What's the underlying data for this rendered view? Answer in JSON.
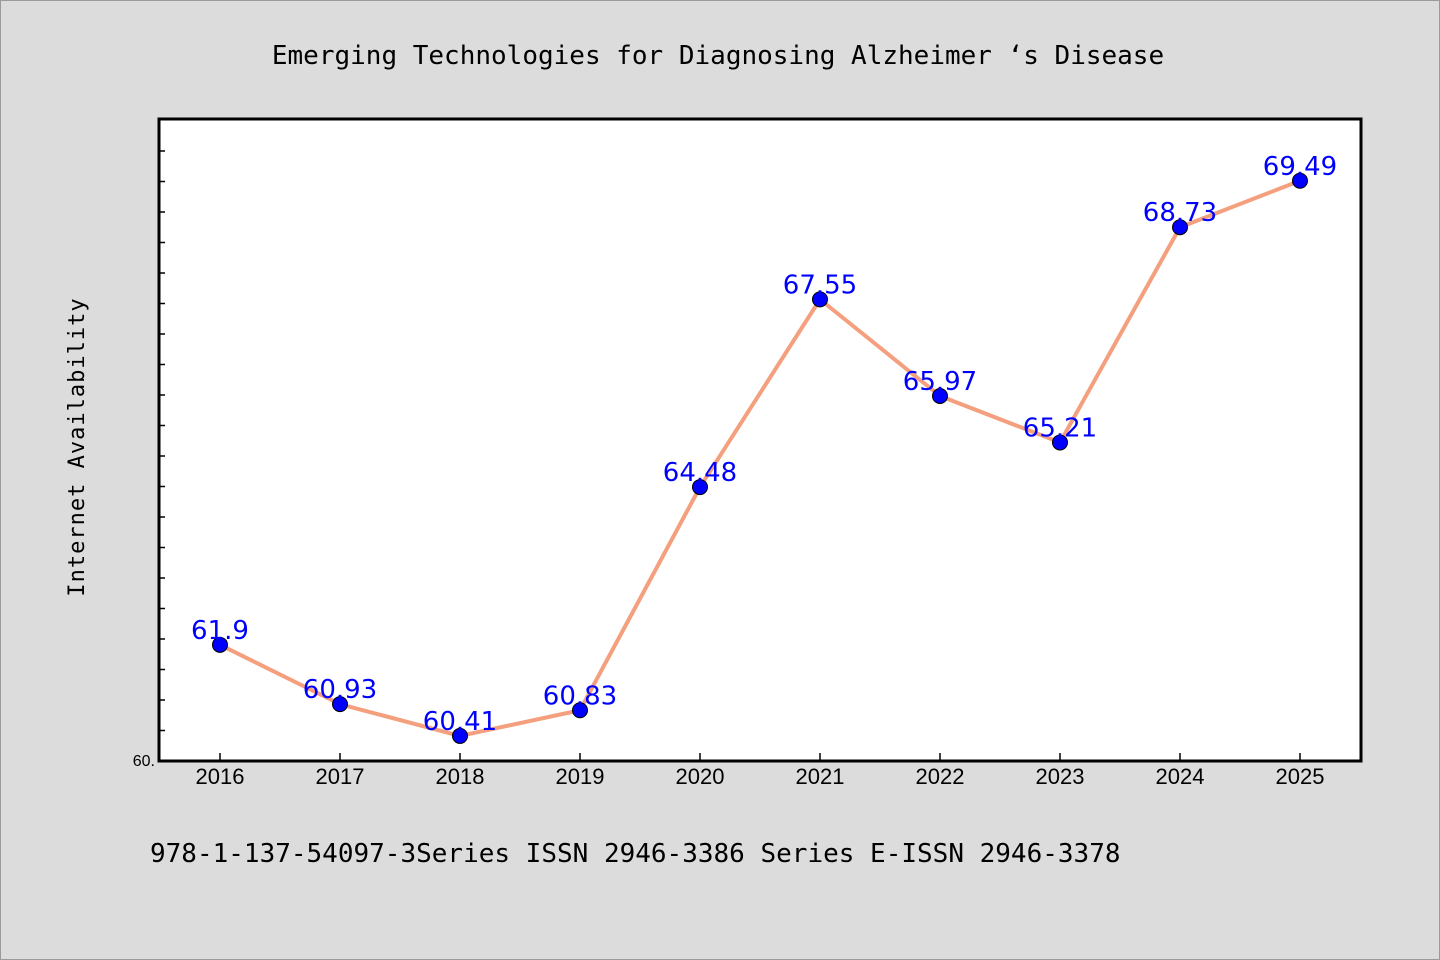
{
  "chart_data": {
    "type": "line",
    "title": "Emerging Technologies for Diagnosing Alzheimer ‘s Disease",
    "xlabel": "",
    "ylabel": "Internet Availability",
    "categories": [
      "2016",
      "2017",
      "2018",
      "2019",
      "2020",
      "2021",
      "2022",
      "2023",
      "2024",
      "2025"
    ],
    "series": [
      {
        "values": [
          61.9,
          60.93,
          60.41,
          60.83,
          64.48,
          67.55,
          65.97,
          65.21,
          68.73,
          69.49
        ]
      }
    ],
    "data_labels": [
      "61.9",
      "60.93",
      "60.41",
      "60.83",
      "64.48",
      "67.55",
      "65.97",
      "65.21",
      "68.73",
      "69.49"
    ],
    "ylim": [
      60.0,
      70.5
    ],
    "ytick_label": "60.",
    "grid": false,
    "line_color": "#f4a07e",
    "marker_color": "#0000ff",
    "label_color": "#0000ff"
  },
  "footer": {
    "text": "978-1-137-54097-3Series ISSN 2946-3386 Series E-ISSN 2946-3378"
  }
}
